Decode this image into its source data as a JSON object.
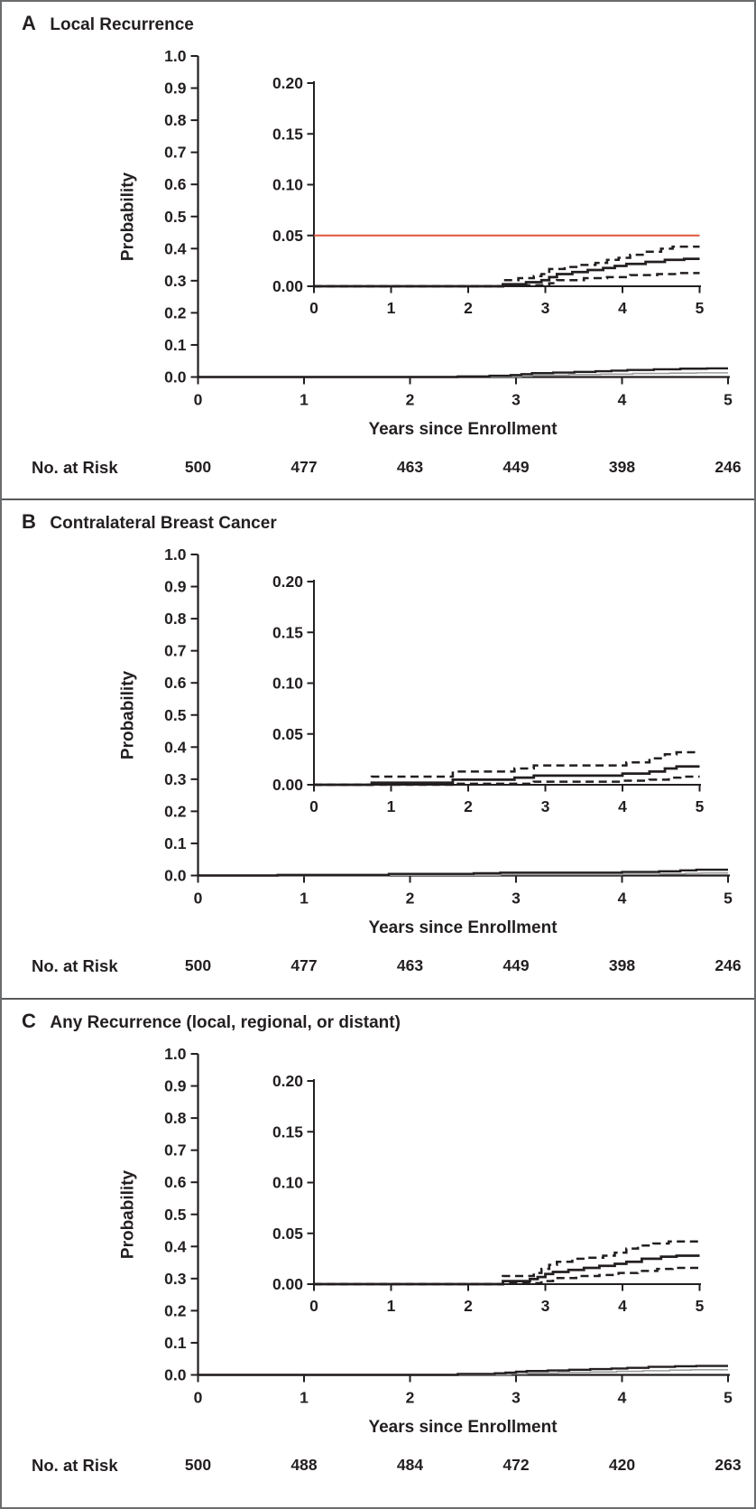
{
  "figure": {
    "x_axis_title": "Years since Enrollment",
    "y_axis_title": "Probability",
    "risk_label": "No. at Risk",
    "colors": {
      "line": "#231f20",
      "reference_line": "#e0563e",
      "secondary_line": "#9c9c9c",
      "border": "#58595b"
    }
  },
  "chart_data": [
    {
      "type": "line",
      "panel_letter": "A",
      "title": "Local Recurrence",
      "xlabel": "Years since Enrollment",
      "ylabel": "Probability",
      "main_axis": {
        "ylim": [
          0.0,
          1.0
        ],
        "yticks": [
          "1.0",
          "0.9",
          "0.8",
          "0.7",
          "0.6",
          "0.5",
          "0.4",
          "0.3",
          "0.2",
          "0.1",
          "0.0"
        ],
        "xlim": [
          0,
          5
        ],
        "xticks": [
          "0",
          "1",
          "2",
          "3",
          "4",
          "5"
        ]
      },
      "inset_axis": {
        "ylim": [
          0.0,
          0.2
        ],
        "yticks": [
          "0.20",
          "0.15",
          "0.10",
          "0.05",
          "0.00"
        ],
        "xlim": [
          0,
          5
        ],
        "xticks": [
          "0",
          "1",
          "2",
          "3",
          "4",
          "5"
        ]
      },
      "reference_line": {
        "value": 0.05,
        "color": "#e0563e"
      },
      "series": [
        {
          "name": "estimate",
          "style": "solid",
          "points": [
            [
              0,
              0
            ],
            [
              2.45,
              0.002
            ],
            [
              2.75,
              0.004
            ],
            [
              2.95,
              0.006
            ],
            [
              3.05,
              0.009
            ],
            [
              3.15,
              0.012
            ],
            [
              3.35,
              0.014
            ],
            [
              3.55,
              0.016
            ],
            [
              3.75,
              0.018
            ],
            [
              3.9,
              0.02
            ],
            [
              4.05,
              0.022
            ],
            [
              4.3,
              0.024
            ],
            [
              4.55,
              0.026
            ],
            [
              4.8,
              0.027
            ]
          ]
        },
        {
          "name": "upper-95-ci",
          "style": "dashed",
          "points": [
            [
              0,
              0
            ],
            [
              2.45,
              0.006
            ],
            [
              2.65,
              0.008
            ],
            [
              2.85,
              0.01
            ],
            [
              2.95,
              0.012
            ],
            [
              3.05,
              0.017
            ],
            [
              3.25,
              0.019
            ],
            [
              3.45,
              0.021
            ],
            [
              3.65,
              0.023
            ],
            [
              3.8,
              0.026
            ],
            [
              3.95,
              0.028
            ],
            [
              4.1,
              0.031
            ],
            [
              4.3,
              0.034
            ],
            [
              4.5,
              0.037
            ],
            [
              4.65,
              0.039
            ]
          ]
        },
        {
          "name": "lower-95-ci",
          "style": "dashed",
          "points": [
            [
              0,
              0
            ],
            [
              2.45,
              0.001
            ],
            [
              3.05,
              0.003
            ],
            [
              3.15,
              0.006
            ],
            [
              3.5,
              0.008
            ],
            [
              3.8,
              0.009
            ],
            [
              4.1,
              0.011
            ],
            [
              4.45,
              0.012
            ],
            [
              4.7,
              0.013
            ]
          ]
        }
      ],
      "risk_label": "No. at Risk",
      "risk_values": [
        "500",
        "477",
        "463",
        "449",
        "398",
        "246"
      ]
    },
    {
      "type": "line",
      "panel_letter": "B",
      "title": "Contralateral Breast Cancer",
      "xlabel": "Years since Enrollment",
      "ylabel": "Probability",
      "main_axis": {
        "ylim": [
          0.0,
          1.0
        ],
        "yticks": [
          "1.0",
          "0.9",
          "0.8",
          "0.7",
          "0.6",
          "0.5",
          "0.4",
          "0.3",
          "0.2",
          "0.1",
          "0.0"
        ],
        "xlim": [
          0,
          5
        ],
        "xticks": [
          "0",
          "1",
          "2",
          "3",
          "4",
          "5"
        ]
      },
      "inset_axis": {
        "ylim": [
          0.0,
          0.2
        ],
        "yticks": [
          "0.20",
          "0.15",
          "0.10",
          "0.05",
          "0.00"
        ],
        "xlim": [
          0,
          5
        ],
        "xticks": [
          "0",
          "1",
          "2",
          "3",
          "4",
          "5"
        ]
      },
      "reference_line": null,
      "series": [
        {
          "name": "estimate",
          "style": "solid",
          "points": [
            [
              0,
              0
            ],
            [
              0.75,
              0.002
            ],
            [
              1.8,
              0.005
            ],
            [
              2.6,
              0.007
            ],
            [
              2.85,
              0.009
            ],
            [
              4.0,
              0.011
            ],
            [
              4.35,
              0.013
            ],
            [
              4.55,
              0.016
            ],
            [
              4.7,
              0.018
            ]
          ]
        },
        {
          "name": "upper-95-ci",
          "style": "dashed",
          "points": [
            [
              0,
              0
            ],
            [
              0.75,
              0.008
            ],
            [
              1.8,
              0.013
            ],
            [
              2.6,
              0.016
            ],
            [
              2.85,
              0.019
            ],
            [
              4.05,
              0.022
            ],
            [
              4.35,
              0.026
            ],
            [
              4.55,
              0.03
            ],
            [
              4.7,
              0.032
            ]
          ]
        },
        {
          "name": "lower-95-ci",
          "style": "dashed",
          "points": [
            [
              0,
              0
            ],
            [
              1.8,
              0.001
            ],
            [
              2.85,
              0.003
            ],
            [
              4.0,
              0.004
            ],
            [
              4.35,
              0.005
            ],
            [
              4.6,
              0.007
            ],
            [
              4.75,
              0.008
            ]
          ]
        }
      ],
      "risk_label": "No. at Risk",
      "risk_values": [
        "500",
        "477",
        "463",
        "449",
        "398",
        "246"
      ]
    },
    {
      "type": "line",
      "panel_letter": "C",
      "title": "Any Recurrence (local, regional, or distant)",
      "xlabel": "Years since Enrollment",
      "ylabel": "Probability",
      "main_axis": {
        "ylim": [
          0.0,
          1.0
        ],
        "yticks": [
          "1.0",
          "0.9",
          "0.8",
          "0.7",
          "0.6",
          "0.5",
          "0.4",
          "0.3",
          "0.2",
          "0.1",
          "0.0"
        ],
        "xlim": [
          0,
          5
        ],
        "xticks": [
          "0",
          "1",
          "2",
          "3",
          "4",
          "5"
        ]
      },
      "inset_axis": {
        "ylim": [
          0.0,
          0.2
        ],
        "yticks": [
          "0.20",
          "0.15",
          "0.10",
          "0.05",
          "0.00"
        ],
        "xlim": [
          0,
          5
        ],
        "xticks": [
          "0",
          "1",
          "2",
          "3",
          "4",
          "5"
        ]
      },
      "reference_line": null,
      "series": [
        {
          "name": "estimate",
          "style": "solid",
          "points": [
            [
              0,
              0
            ],
            [
              2.45,
              0.003
            ],
            [
              2.8,
              0.005
            ],
            [
              2.9,
              0.007
            ],
            [
              3.0,
              0.01
            ],
            [
              3.1,
              0.012
            ],
            [
              3.3,
              0.014
            ],
            [
              3.5,
              0.016
            ],
            [
              3.7,
              0.018
            ],
            [
              3.9,
              0.02
            ],
            [
              4.05,
              0.022
            ],
            [
              4.25,
              0.025
            ],
            [
              4.5,
              0.027
            ],
            [
              4.7,
              0.028
            ]
          ]
        },
        {
          "name": "upper-95-ci",
          "style": "dashed",
          "points": [
            [
              0,
              0
            ],
            [
              2.45,
              0.008
            ],
            [
              2.85,
              0.011
            ],
            [
              2.95,
              0.015
            ],
            [
              3.05,
              0.019
            ],
            [
              3.15,
              0.022
            ],
            [
              3.35,
              0.025
            ],
            [
              3.55,
              0.026
            ],
            [
              3.75,
              0.028
            ],
            [
              3.9,
              0.031
            ],
            [
              4.05,
              0.035
            ],
            [
              4.2,
              0.038
            ],
            [
              4.4,
              0.04
            ],
            [
              4.6,
              0.042
            ]
          ]
        },
        {
          "name": "lower-95-ci",
          "style": "dashed",
          "points": [
            [
              0,
              0
            ],
            [
              2.45,
              0.001
            ],
            [
              2.95,
              0.003
            ],
            [
              3.1,
              0.006
            ],
            [
              3.4,
              0.008
            ],
            [
              3.7,
              0.009
            ],
            [
              3.95,
              0.011
            ],
            [
              4.2,
              0.013
            ],
            [
              4.45,
              0.015
            ],
            [
              4.65,
              0.016
            ]
          ]
        }
      ],
      "risk_label": "No. at Risk",
      "risk_values": [
        "500",
        "488",
        "484",
        "472",
        "420",
        "263"
      ]
    }
  ]
}
